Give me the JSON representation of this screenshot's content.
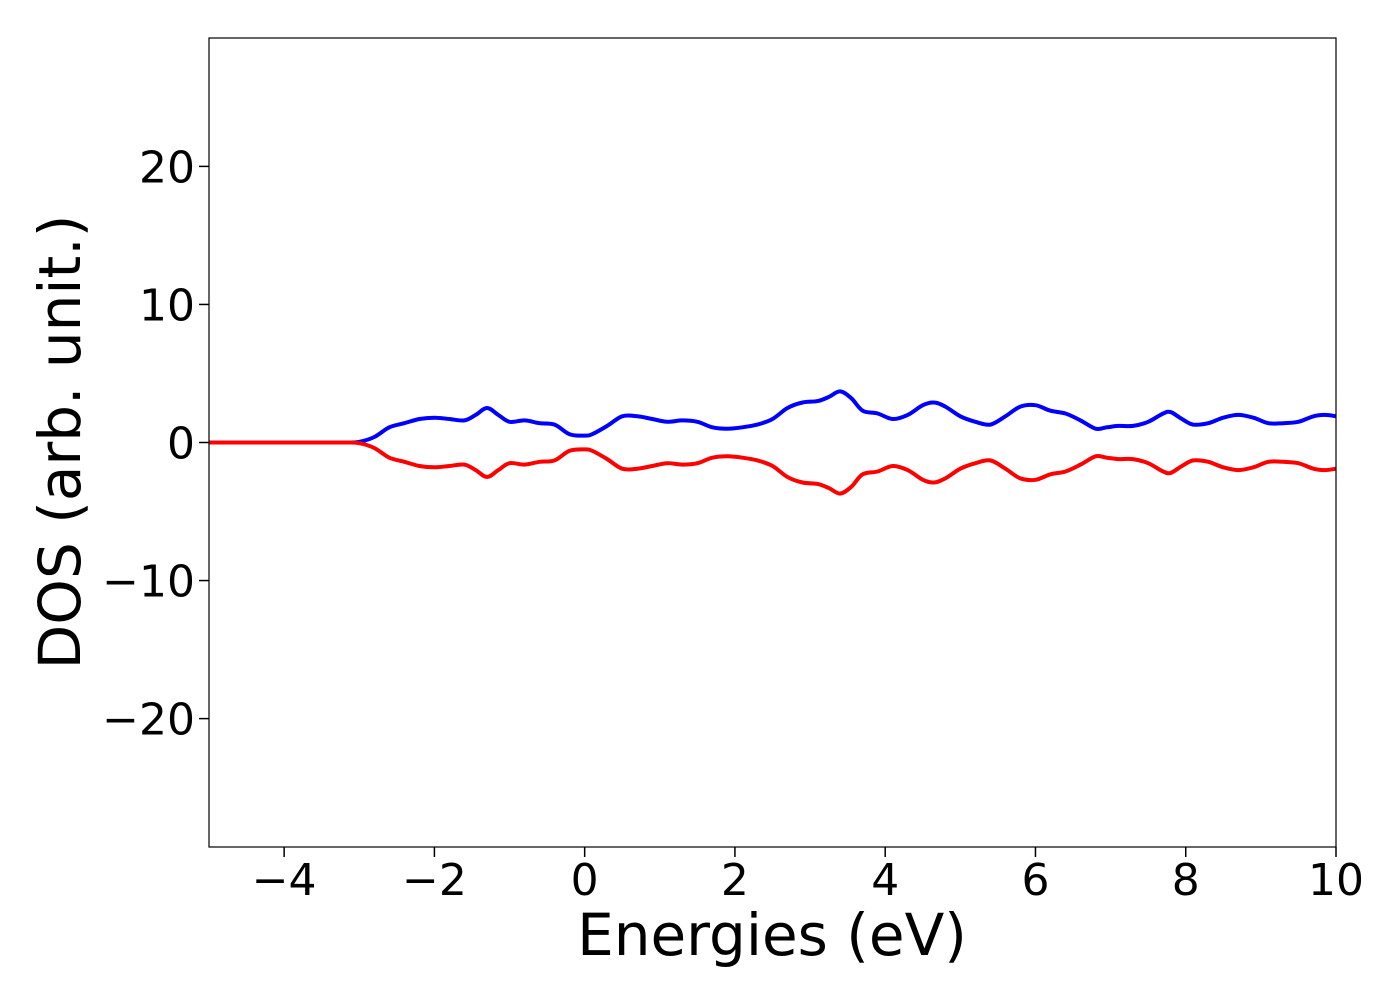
{
  "chart_data": {
    "type": "line",
    "xlabel": "Energies (eV)",
    "ylabel": "DOS (arb. unit.)",
    "xlim": [
      -5,
      10
    ],
    "ylim": [
      -29.3,
      29.3
    ],
    "xticks": [
      -4,
      -2,
      0,
      2,
      4,
      6,
      8,
      10
    ],
    "yticks": [
      -20,
      -10,
      0,
      10,
      20
    ],
    "xtick_labels": [
      "−4",
      "−2",
      "0",
      "2",
      "4",
      "6",
      "8",
      "10"
    ],
    "ytick_labels": [
      "−20",
      "−10",
      "0",
      "10",
      "20"
    ],
    "grid": false,
    "legend": "none",
    "series": [
      {
        "color": "#0000ff",
        "x": [
          -5,
          -4,
          -3.2,
          -3,
          -2.8,
          -2.6,
          -2.4,
          -2.2,
          -2.0,
          -1.8,
          -1.6,
          -1.45,
          -1.3,
          -1.15,
          -1.0,
          -0.8,
          -0.6,
          -0.4,
          -0.2,
          0,
          0.1,
          0.3,
          0.5,
          0.7,
          0.9,
          1.1,
          1.3,
          1.5,
          1.7,
          1.9,
          2.1,
          2.3,
          2.5,
          2.7,
          2.9,
          3.1,
          3.25,
          3.4,
          3.55,
          3.7,
          3.9,
          4.1,
          4.3,
          4.5,
          4.65,
          4.8,
          5.0,
          5.2,
          5.4,
          5.6,
          5.8,
          6.0,
          6.2,
          6.4,
          6.6,
          6.8,
          6.95,
          7.1,
          7.3,
          7.5,
          7.7,
          7.8,
          7.95,
          8.1,
          8.3,
          8.5,
          8.7,
          8.9,
          9.1,
          9.3,
          9.5,
          9.7,
          9.85,
          10
        ],
        "y": [
          0,
          0,
          0,
          0.05,
          0.4,
          1.1,
          1.4,
          1.7,
          1.8,
          1.7,
          1.6,
          2.0,
          2.5,
          2.0,
          1.5,
          1.6,
          1.4,
          1.3,
          0.6,
          0.5,
          0.6,
          1.2,
          1.9,
          1.9,
          1.7,
          1.5,
          1.6,
          1.5,
          1.1,
          1.0,
          1.1,
          1.3,
          1.7,
          2.5,
          2.9,
          3.0,
          3.3,
          3.7,
          3.2,
          2.3,
          2.1,
          1.7,
          2.0,
          2.7,
          2.9,
          2.6,
          1.9,
          1.5,
          1.3,
          1.9,
          2.6,
          2.7,
          2.3,
          2.1,
          1.6,
          1.0,
          1.1,
          1.2,
          1.2,
          1.5,
          2.1,
          2.2,
          1.7,
          1.3,
          1.4,
          1.8,
          2.0,
          1.8,
          1.4,
          1.4,
          1.5,
          1.9,
          2.0,
          1.9
        ]
      },
      {
        "color": "#ff0000",
        "x": [
          -5,
          -4,
          -3.2,
          -3,
          -2.8,
          -2.6,
          -2.4,
          -2.2,
          -2.0,
          -1.8,
          -1.6,
          -1.45,
          -1.3,
          -1.15,
          -1.0,
          -0.8,
          -0.6,
          -0.4,
          -0.2,
          0,
          0.1,
          0.3,
          0.5,
          0.7,
          0.9,
          1.1,
          1.3,
          1.5,
          1.7,
          1.9,
          2.1,
          2.3,
          2.5,
          2.7,
          2.9,
          3.1,
          3.25,
          3.4,
          3.55,
          3.7,
          3.9,
          4.1,
          4.3,
          4.5,
          4.65,
          4.8,
          5.0,
          5.2,
          5.4,
          5.6,
          5.8,
          6.0,
          6.2,
          6.4,
          6.6,
          6.8,
          6.95,
          7.1,
          7.3,
          7.5,
          7.7,
          7.8,
          7.95,
          8.1,
          8.3,
          8.5,
          8.7,
          8.9,
          9.1,
          9.3,
          9.5,
          9.7,
          9.85,
          10
        ],
        "y": [
          0,
          0,
          0,
          -0.05,
          -0.4,
          -1.1,
          -1.4,
          -1.7,
          -1.8,
          -1.7,
          -1.6,
          -2.0,
          -2.5,
          -2.0,
          -1.5,
          -1.6,
          -1.4,
          -1.3,
          -0.6,
          -0.5,
          -0.6,
          -1.2,
          -1.9,
          -1.9,
          -1.7,
          -1.5,
          -1.6,
          -1.5,
          -1.1,
          -1.0,
          -1.1,
          -1.3,
          -1.7,
          -2.5,
          -2.9,
          -3.0,
          -3.3,
          -3.7,
          -3.2,
          -2.3,
          -2.1,
          -1.7,
          -2.0,
          -2.7,
          -2.9,
          -2.6,
          -1.9,
          -1.5,
          -1.3,
          -1.9,
          -2.6,
          -2.7,
          -2.3,
          -2.1,
          -1.6,
          -1.0,
          -1.1,
          -1.2,
          -1.2,
          -1.5,
          -2.1,
          -2.2,
          -1.7,
          -1.3,
          -1.4,
          -1.8,
          -2.0,
          -1.8,
          -1.4,
          -1.4,
          -1.5,
          -1.9,
          -2.0,
          -1.9
        ]
      }
    ]
  }
}
